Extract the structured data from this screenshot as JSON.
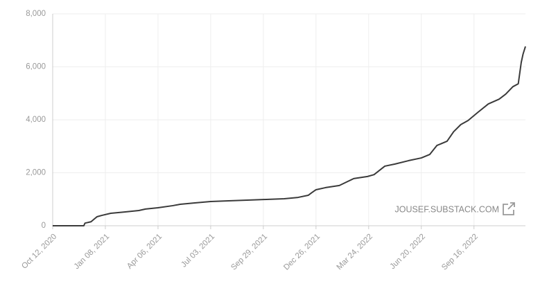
{
  "chart_data": {
    "type": "line",
    "x": [
      "2020-10-12",
      "2020-12-03",
      "2020-12-05",
      "2020-12-15",
      "2020-12-25",
      "2021-01-02",
      "2021-01-17",
      "2021-02-09",
      "2021-03-05",
      "2021-03-16",
      "2021-04-06",
      "2021-05-01",
      "2021-05-13",
      "2021-06-05",
      "2021-07-03",
      "2021-08-02",
      "2021-09-06",
      "2021-09-29",
      "2021-11-03",
      "2021-11-26",
      "2021-12-13",
      "2021-12-19",
      "2021-12-26",
      "2022-01-11",
      "2022-02-03",
      "2022-02-15",
      "2022-02-27",
      "2022-03-22",
      "2022-04-02",
      "2022-04-20",
      "2022-05-07",
      "2022-05-30",
      "2022-06-20",
      "2022-07-04",
      "2022-07-16",
      "2022-08-02",
      "2022-08-13",
      "2022-08-25",
      "2022-09-06",
      "2022-09-23",
      "2022-10-10",
      "2022-10-28",
      "2022-11-08",
      "2022-11-20",
      "2022-11-29",
      "2022-12-04",
      "2022-12-07",
      "2022-12-11"
    ],
    "values": [
      0,
      0,
      100,
      150,
      340,
      390,
      470,
      520,
      575,
      630,
      680,
      760,
      810,
      860,
      915,
      940,
      970,
      990,
      1020,
      1070,
      1150,
      1250,
      1360,
      1440,
      1520,
      1650,
      1780,
      1860,
      1930,
      2250,
      2330,
      2460,
      2560,
      2690,
      3030,
      3190,
      3550,
      3820,
      3970,
      4290,
      4600,
      4780,
      4970,
      5250,
      5360,
      6170,
      6480,
      6770
    ],
    "color": "#3a3a3a",
    "xlim": [
      "2020-10-12",
      "2022-12-11"
    ],
    "xticks": [
      {
        "value": "2020-10-12",
        "label": "Oct 12, 2020"
      },
      {
        "value": "2021-01-08",
        "label": "Jan 08, 2021"
      },
      {
        "value": "2021-04-06",
        "label": "Apr 06, 2021"
      },
      {
        "value": "2021-07-03",
        "label": "Jul 03, 2021"
      },
      {
        "value": "2021-09-29",
        "label": "Sep 29, 2021"
      },
      {
        "value": "2021-12-26",
        "label": "Dec 26, 2021"
      },
      {
        "value": "2022-03-24",
        "label": "Mar 24, 2022"
      },
      {
        "value": "2022-06-20",
        "label": "Jun 20, 2022"
      },
      {
        "value": "2022-09-16",
        "label": "Sep 16, 2022"
      }
    ],
    "ylim": [
      0,
      8000
    ],
    "yticks": [
      0,
      {
        "value": 2000,
        "label": "2,000"
      },
      {
        "value": 4000,
        "label": "4,000"
      },
      {
        "value": 6000,
        "label": "6,000"
      },
      {
        "value": 8000,
        "label": "8,000"
      }
    ],
    "grid": true,
    "watermark": "JOUSEF.SUBSTACK.COM"
  }
}
